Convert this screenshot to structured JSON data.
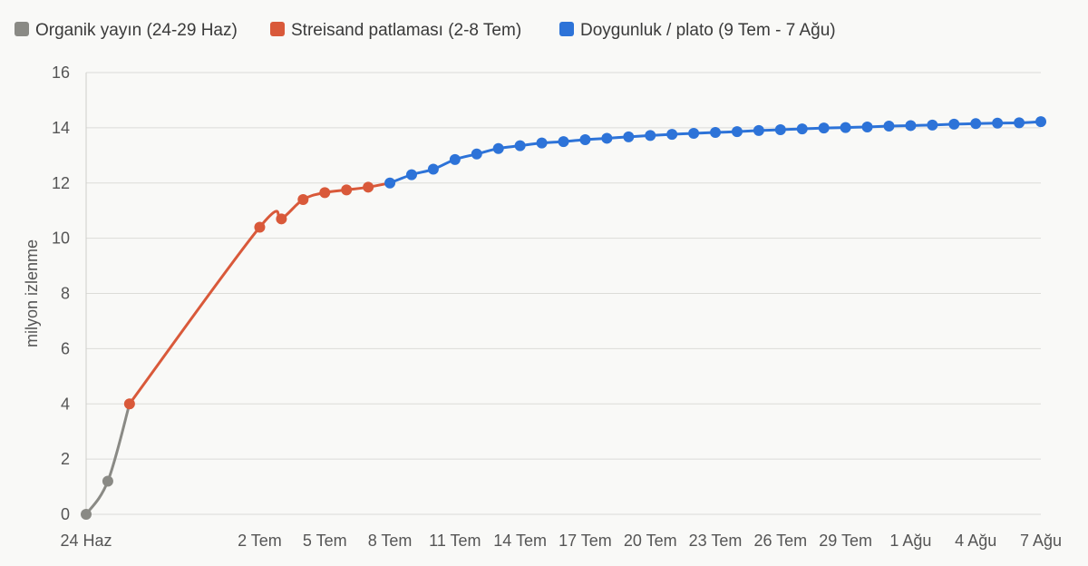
{
  "chart_data": {
    "type": "line",
    "title": "",
    "xlabel": "",
    "ylabel": "milyon izlenme",
    "ylim": [
      0,
      16
    ],
    "yticks": [
      0,
      2,
      4,
      6,
      8,
      10,
      12,
      14,
      16
    ],
    "grid": true,
    "legend_position": "top-left",
    "x_ticks": [
      "24 Haz",
      "2 Tem",
      "5 Tem",
      "8 Tem",
      "11 Tem",
      "14 Tem",
      "17 Tem",
      "20 Tem",
      "23 Tem",
      "26 Tem",
      "29 Tem",
      "1 Ağu",
      "4 Ağu",
      "7 Ağu"
    ],
    "series": [
      {
        "name": "Organik yayın (24-29 Haz)",
        "color": "#8a8a85",
        "x": [
          "24 Haz",
          "25 Haz",
          "26 Haz"
        ],
        "values": [
          0.0,
          1.2,
          4.0
        ]
      },
      {
        "name": "Streisand patlaması (2-8 Tem)",
        "color": "#d9593a",
        "x": [
          "26 Haz",
          "2 Tem",
          "3 Tem",
          "4 Tem",
          "5 Tem",
          "6 Tem",
          "7 Tem",
          "8 Tem"
        ],
        "values": [
          4.0,
          10.4,
          10.7,
          11.4,
          11.65,
          11.75,
          11.85,
          12.0
        ]
      },
      {
        "name": "Doygunluk / plato (9 Tem - 7 Ağu)",
        "color": "#2d73d8",
        "x": [
          "8 Tem",
          "9 Tem",
          "10 Tem",
          "11 Tem",
          "12 Tem",
          "13 Tem",
          "14 Tem",
          "15 Tem",
          "16 Tem",
          "17 Tem",
          "18 Tem",
          "19 Tem",
          "20 Tem",
          "21 Tem",
          "22 Tem",
          "23 Tem",
          "24 Tem",
          "25 Tem",
          "26 Tem",
          "27 Tem",
          "28 Tem",
          "29 Tem",
          "30 Tem",
          "31 Tem",
          "1 Ağu",
          "2 Ağu",
          "3 Ağu",
          "4 Ağu",
          "5 Ağu",
          "6 Ağu",
          "7 Ağu"
        ],
        "values": [
          12.0,
          12.3,
          12.5,
          12.85,
          13.05,
          13.25,
          13.35,
          13.45,
          13.5,
          13.57,
          13.62,
          13.67,
          13.72,
          13.76,
          13.8,
          13.83,
          13.86,
          13.9,
          13.93,
          13.96,
          13.99,
          14.01,
          14.03,
          14.06,
          14.08,
          14.1,
          14.13,
          14.15,
          14.17,
          14.18,
          14.22
        ]
      }
    ]
  }
}
